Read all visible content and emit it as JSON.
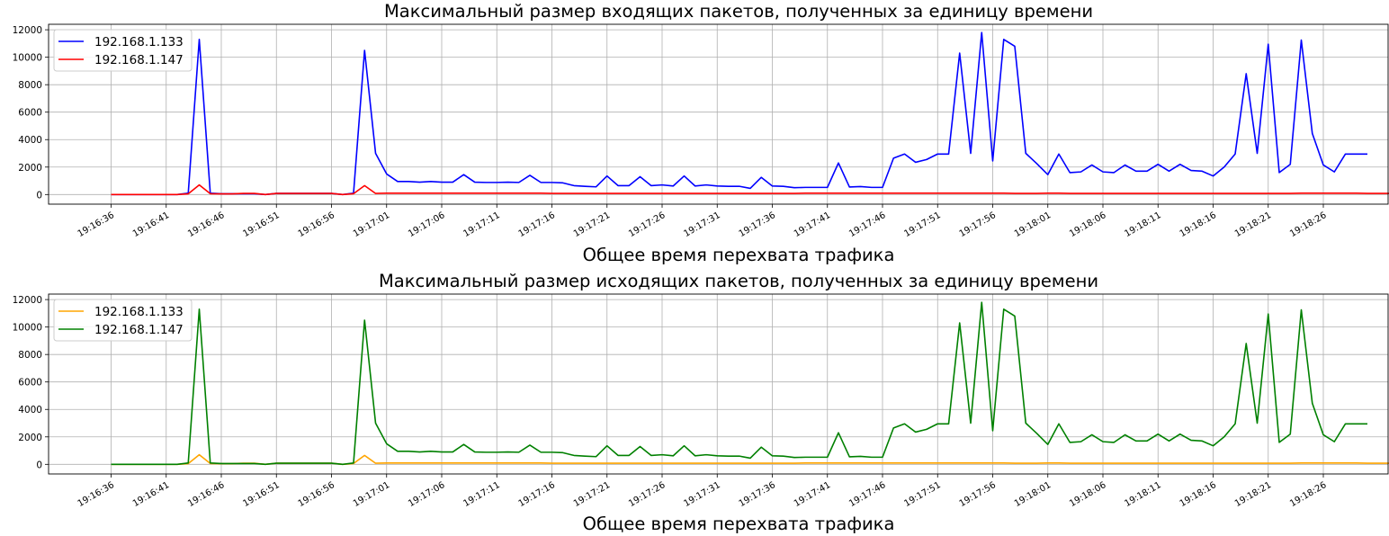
{
  "chart_data": [
    {
      "type": "line",
      "title": "Максимальный размер входящих пакетов, полученных за единицу времени",
      "xlabel": "Общее время перехвата трафика",
      "ylabel": "",
      "ylim": [
        -700,
        12400
      ],
      "yticks": [
        0,
        2000,
        4000,
        6000,
        8000,
        10000,
        12000
      ],
      "x_start": "19:16:36",
      "x_step_seconds": 1,
      "xtick_labels": [
        "19:16:36",
        "19:16:41",
        "19:16:46",
        "19:16:51",
        "19:16:56",
        "19:17:01",
        "19:17:06",
        "19:17:11",
        "19:17:16",
        "19:17:21",
        "19:17:26",
        "19:17:31",
        "19:17:36",
        "19:17:41",
        "19:17:46",
        "19:17:51",
        "19:17:56",
        "19:18:01",
        "19:18:06",
        "19:18:11",
        "19:18:16",
        "19:18:21",
        "19:18:26"
      ],
      "grid": true,
      "legend_position": "upper-left",
      "series": [
        {
          "name": "192.168.1.133",
          "color": "#0000ff",
          "values": [
            0,
            0,
            0,
            0,
            0,
            0,
            0,
            100,
            11300,
            100,
            60,
            60,
            60,
            60,
            0,
            80,
            80,
            80,
            80,
            80,
            80,
            0,
            100,
            10500,
            3000,
            1500,
            950,
            950,
            900,
            950,
            900,
            900,
            1450,
            900,
            880,
            880,
            900,
            880,
            1400,
            880,
            880,
            850,
            650,
            600,
            560,
            1350,
            650,
            650,
            1300,
            650,
            700,
            620,
            1350,
            620,
            700,
            620,
            600,
            600,
            450,
            1250,
            620,
            600,
            500,
            520,
            520,
            520,
            2300,
            550,
            580,
            520,
            520,
            2650,
            2950,
            2350,
            2550,
            2950,
            2950,
            10300,
            3000,
            11800,
            2450,
            11300,
            10800,
            3000,
            2250,
            1450,
            2950,
            1600,
            1650,
            2150,
            1650,
            1600,
            2150,
            1700,
            1700,
            2200,
            1700,
            2200,
            1750,
            1700,
            1350,
            2000,
            2950,
            8800,
            3000,
            10950,
            1600,
            2200,
            11250,
            4450,
            2150,
            1650,
            2950,
            2950,
            2950
          ]
        },
        {
          "name": "192.168.1.147",
          "color": "#ff0000",
          "values": [
            0,
            0,
            0,
            0,
            0,
            0,
            0,
            50,
            700,
            60,
            50,
            50,
            80,
            80,
            0,
            80,
            80,
            80,
            80,
            80,
            80,
            0,
            60,
            650,
            80,
            100,
            100,
            100,
            100,
            100,
            100,
            100,
            100,
            100,
            100,
            100,
            100,
            100,
            100,
            100,
            80,
            80,
            80,
            80,
            80,
            80,
            80,
            80,
            80,
            80,
            80,
            80,
            80,
            80,
            80,
            80,
            80,
            80,
            80,
            80,
            80,
            80,
            80,
            100,
            100,
            100,
            100,
            100,
            100,
            100,
            100,
            100,
            100,
            100,
            100,
            100,
            100,
            100,
            100,
            100,
            100,
            100,
            80,
            80,
            80,
            100,
            100,
            80,
            80,
            80,
            80,
            80,
            80,
            80,
            80,
            80,
            80,
            80,
            80,
            80,
            80,
            80,
            80,
            80,
            80,
            80,
            80,
            80,
            100,
            100,
            100,
            100,
            100,
            100,
            80,
            80,
            80,
            80
          ]
        }
      ]
    },
    {
      "type": "line",
      "title": "Максимальный размер исходящих пакетов, полученных за единицу времени",
      "xlabel": "Общее время перехвата трафика",
      "ylabel": "",
      "ylim": [
        -700,
        12400
      ],
      "yticks": [
        0,
        2000,
        4000,
        6000,
        8000,
        10000,
        12000
      ],
      "x_start": "19:16:36",
      "x_step_seconds": 1,
      "xtick_labels": [
        "19:16:36",
        "19:16:41",
        "19:16:46",
        "19:16:51",
        "19:16:56",
        "19:17:01",
        "19:17:06",
        "19:17:11",
        "19:17:16",
        "19:17:21",
        "19:17:26",
        "19:17:31",
        "19:17:36",
        "19:17:41",
        "19:17:46",
        "19:17:51",
        "19:17:56",
        "19:18:01",
        "19:18:06",
        "19:18:11",
        "19:18:16",
        "19:18:21",
        "19:18:26"
      ],
      "grid": true,
      "legend_position": "upper-left",
      "series": [
        {
          "name": "192.168.1.133",
          "color": "#ffa500",
          "values": [
            0,
            0,
            0,
            0,
            0,
            0,
            0,
            50,
            700,
            60,
            50,
            50,
            80,
            80,
            0,
            80,
            80,
            80,
            80,
            80,
            80,
            0,
            60,
            650,
            80,
            100,
            100,
            100,
            100,
            100,
            100,
            100,
            100,
            100,
            100,
            100,
            100,
            100,
            100,
            100,
            80,
            80,
            80,
            80,
            80,
            80,
            80,
            80,
            80,
            80,
            80,
            80,
            80,
            80,
            80,
            80,
            80,
            80,
            80,
            80,
            80,
            80,
            80,
            100,
            100,
            100,
            100,
            100,
            100,
            100,
            100,
            100,
            100,
            100,
            100,
            100,
            100,
            100,
            100,
            100,
            100,
            100,
            80,
            80,
            80,
            100,
            100,
            80,
            80,
            80,
            80,
            80,
            80,
            80,
            80,
            80,
            80,
            80,
            80,
            80,
            80,
            80,
            80,
            80,
            80,
            80,
            80,
            80,
            100,
            100,
            100,
            100,
            100,
            100,
            80,
            80,
            80,
            80
          ]
        },
        {
          "name": "192.168.1.147",
          "color": "#008000",
          "values": [
            0,
            0,
            0,
            0,
            0,
            0,
            0,
            100,
            11300,
            100,
            60,
            60,
            60,
            60,
            0,
            80,
            80,
            80,
            80,
            80,
            80,
            0,
            100,
            10500,
            3000,
            1500,
            950,
            950,
            900,
            950,
            900,
            900,
            1450,
            900,
            880,
            880,
            900,
            880,
            1400,
            880,
            880,
            850,
            650,
            600,
            560,
            1350,
            650,
            650,
            1300,
            650,
            700,
            620,
            1350,
            620,
            700,
            620,
            600,
            600,
            450,
            1250,
            620,
            600,
            500,
            520,
            520,
            520,
            2300,
            550,
            580,
            520,
            520,
            2650,
            2950,
            2350,
            2550,
            2950,
            2950,
            10300,
            3000,
            11800,
            2450,
            11300,
            10800,
            3000,
            2250,
            1450,
            2950,
            1600,
            1650,
            2150,
            1650,
            1600,
            2150,
            1700,
            1700,
            2200,
            1700,
            2200,
            1750,
            1700,
            1350,
            2000,
            2950,
            8800,
            3000,
            10950,
            1600,
            2200,
            11250,
            4450,
            2150,
            1650,
            2950,
            2950,
            2950
          ]
        }
      ]
    }
  ]
}
